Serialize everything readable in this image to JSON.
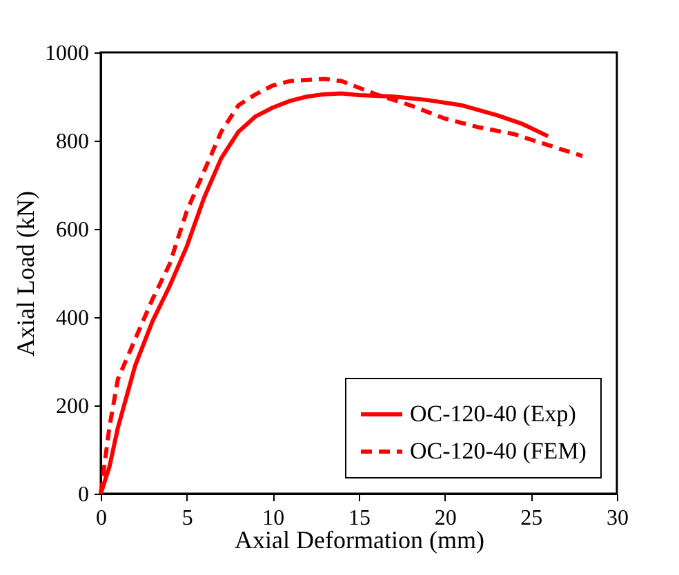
{
  "chart_data": {
    "type": "line",
    "xlabel": "Axial Deformation (mm)",
    "ylabel": "Axial Load (kN)",
    "xlim": [
      0,
      30
    ],
    "xticks": [
      0,
      5,
      10,
      15,
      20,
      25,
      30
    ],
    "ylim": [
      0,
      1000
    ],
    "yticks": [
      0,
      200,
      400,
      600,
      800,
      1000
    ],
    "grid": false,
    "legend": "bottom right",
    "series": [
      {
        "name": "OC-120-40 (Exp)",
        "color": "#ff0000",
        "line_style": "solid",
        "x": [
          0,
          0.5,
          1,
          2,
          3,
          4,
          5,
          6,
          7,
          8,
          9,
          10,
          11,
          12,
          13,
          14,
          15,
          17,
          19,
          21,
          23,
          24.5,
          26
        ],
        "values": [
          0,
          60,
          150,
          290,
          390,
          470,
          560,
          670,
          760,
          820,
          855,
          875,
          890,
          900,
          905,
          907,
          903,
          900,
          892,
          880,
          858,
          838,
          810
        ]
      },
      {
        "name": "OC-120-40 (FEM)",
        "color": "#ff0000",
        "line_style": "dashed",
        "x": [
          0,
          0.5,
          1,
          2,
          3,
          4,
          5,
          6,
          7,
          8,
          9,
          10,
          11,
          13,
          14,
          15,
          16,
          18,
          20,
          22,
          24,
          26,
          28
        ],
        "values": [
          0,
          150,
          260,
          350,
          440,
          520,
          640,
          730,
          820,
          880,
          905,
          925,
          935,
          940,
          935,
          920,
          905,
          880,
          850,
          830,
          815,
          790,
          765
        ]
      }
    ]
  }
}
